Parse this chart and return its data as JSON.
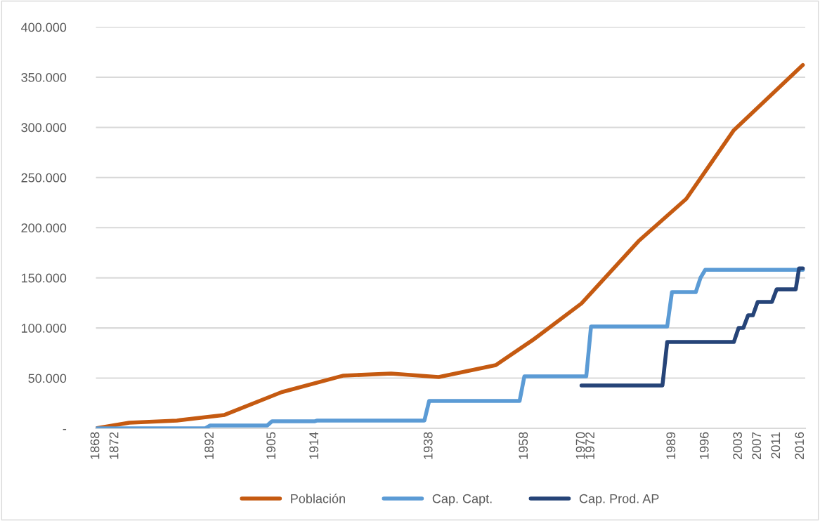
{
  "chart_data": {
    "type": "line",
    "series": [
      {
        "name": "Población",
        "color": "#c55a11",
        "x": [
          1868,
          1875,
          1885,
          1895,
          1907,
          1920,
          1930,
          1940,
          1952,
          1960,
          1970,
          1982,
          1992,
          2002,
          2016.5
        ],
        "values": [
          0,
          5600,
          7700,
          13300,
          36000,
          52500,
          54500,
          51000,
          63000,
          88800,
          124500,
          186700,
          228700,
          297200,
          362200
        ]
      },
      {
        "name": "Cap. Capt.",
        "color": "#5b9bd5",
        "x": [
          1868,
          1891,
          1892,
          1904,
          1905,
          1914,
          1914.5,
          1937,
          1938,
          1957,
          1958,
          1971,
          1972,
          1988,
          1989,
          1994,
          1995,
          1996,
          2016.5
        ],
        "values": [
          0,
          0,
          2800,
          2800,
          7000,
          7000,
          7700,
          7700,
          27300,
          27300,
          51700,
          51700,
          101400,
          101400,
          135700,
          135700,
          150000,
          158000,
          158000
        ]
      },
      {
        "name": "Cap. Prod. AP",
        "color": "#264478",
        "x": [
          1970,
          1987,
          1988,
          2002,
          2003,
          2004,
          2005,
          2006,
          2007,
          2010,
          2011,
          2015,
          2015.7,
          2016.5
        ],
        "values": [
          42700,
          42700,
          86000,
          86000,
          100000,
          100000,
          112600,
          112600,
          125900,
          125900,
          138500,
          138500,
          159400,
          159400
        ]
      }
    ],
    "xlim": [
      1868,
      2017
    ],
    "xticks": [
      1868,
      1872,
      1892,
      1905,
      1914,
      1938,
      1958,
      1970,
      1972,
      1989,
      1996,
      2003,
      2007,
      2011,
      2016
    ],
    "ylim": [
      0,
      400000
    ],
    "yticks": [
      {
        "value": 0,
        "label": "-"
      },
      {
        "value": 50000,
        "label": "50.000"
      },
      {
        "value": 100000,
        "label": "100.000"
      },
      {
        "value": 150000,
        "label": "150.000"
      },
      {
        "value": 200000,
        "label": "200.000"
      },
      {
        "value": 250000,
        "label": "250.000"
      },
      {
        "value": 300000,
        "label": "300.000"
      },
      {
        "value": 350000,
        "label": "350.000"
      },
      {
        "value": 400000,
        "label": "400.000"
      }
    ],
    "grid": "y",
    "legend": "bottom",
    "marker": "none",
    "line_style": "solid"
  }
}
